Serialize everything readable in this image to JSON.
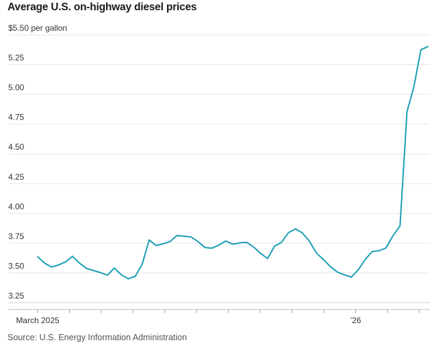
{
  "title": "Average U.S. on-highway diesel prices",
  "source": "Source: U.S. Energy Information Administration",
  "chart_data": {
    "type": "line",
    "title": "Average U.S. on-highway diesel prices",
    "ylabel": "$ per gallon",
    "ylim": [
      3.25,
      5.5
    ],
    "yticks": [
      5.5,
      5.25,
      5.0,
      4.75,
      4.5,
      4.25,
      4.0,
      3.75,
      3.5,
      3.25
    ],
    "ytick_labels": [
      "$5.50 per gallon",
      "5.25",
      "5.00",
      "4.75",
      "4.50",
      "4.25",
      "4.00",
      "3.75",
      "3.50",
      "3.25"
    ],
    "x_week_range": [
      0,
      54
    ],
    "x_labels": [
      {
        "week": 0,
        "text": "March 2025"
      },
      {
        "week": 44,
        "text": "’26"
      }
    ],
    "x_minor_ticks": [
      0,
      4.4,
      8.8,
      13.2,
      17.6,
      22,
      26.4,
      30.8,
      35.2,
      39.6,
      44,
      48.4,
      52.8
    ],
    "color": "#1b9fb5",
    "series": [
      {
        "name": "Diesel price",
        "values": [
          3.635,
          3.582,
          3.549,
          3.567,
          3.592,
          3.639,
          3.582,
          3.538,
          3.52,
          3.503,
          3.481,
          3.541,
          3.484,
          3.45,
          3.471,
          3.574,
          3.777,
          3.73,
          3.744,
          3.763,
          3.814,
          3.808,
          3.803,
          3.763,
          3.714,
          3.707,
          3.734,
          3.768,
          3.741,
          3.752,
          3.756,
          3.717,
          3.664,
          3.621,
          3.725,
          3.757,
          3.838,
          3.87,
          3.835,
          3.766,
          3.668,
          3.612,
          3.553,
          3.507,
          3.484,
          3.464,
          3.525,
          3.613,
          3.679,
          3.686,
          3.71,
          3.813,
          3.894,
          4.855,
          5.066,
          5.375,
          5.401
        ]
      }
    ]
  }
}
